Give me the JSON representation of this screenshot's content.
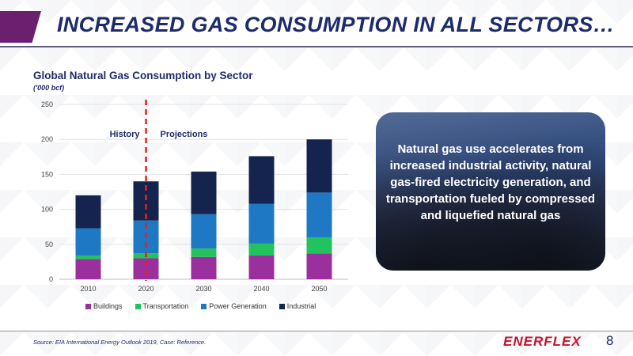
{
  "slide": {
    "title": "INCREASED GAS CONSUMPTION IN ALL SECTORS…",
    "source": "Source: EIA International Energy Outlook 2019, Case: Reference.",
    "logo_text": "ENERFLEX",
    "page_number": "8"
  },
  "callout": {
    "text": "Natural gas use accelerates from increased industrial activity, natural gas-fired electricity generation, and transportation fueled by compressed and liquefied natural gas"
  },
  "colors": {
    "accent": "#6b1f6f",
    "title": "#1d2b6b",
    "divider": "#e2231a",
    "logo": "#c8102e"
  },
  "chart_data": {
    "type": "bar",
    "stacked": true,
    "title": "Global Natural Gas Consumption by Sector",
    "subtitle": "('000 bcf)",
    "categories": [
      "2010",
      "2020",
      "2030",
      "2040",
      "2050"
    ],
    "series": [
      {
        "name": "Buildings",
        "color": "#9b2f9e",
        "values": [
          29,
          30,
          32,
          34,
          37
        ]
      },
      {
        "name": "Transportation",
        "color": "#22c35e",
        "values": [
          5,
          7,
          12,
          17,
          23
        ]
      },
      {
        "name": "Power Generation",
        "color": "#1f78c4",
        "values": [
          39,
          47,
          49,
          57,
          64
        ]
      },
      {
        "name": "Industrial",
        "color": "#14244f",
        "values": [
          47,
          56,
          61,
          68,
          76
        ]
      }
    ],
    "ylim": [
      0,
      250
    ],
    "yticks": [
      0,
      50,
      100,
      150,
      200,
      250
    ],
    "grid": true,
    "legend_position": "bottom",
    "annotations": {
      "history": "History",
      "projections": "Projections"
    }
  }
}
